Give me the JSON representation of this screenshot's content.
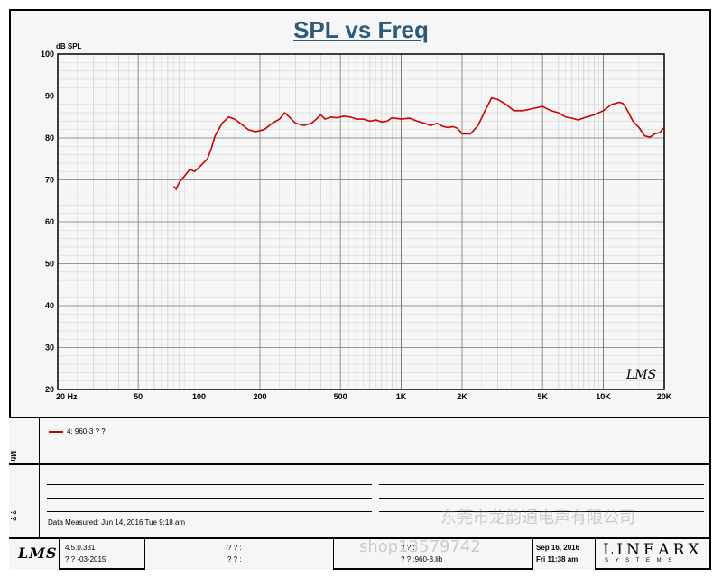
{
  "chart_data": {
    "type": "line",
    "title": "SPL vs Freq",
    "ylabel": "dB SPL",
    "xscale": "log",
    "xlim": [
      20,
      20000
    ],
    "ylim": [
      20,
      100
    ],
    "yticks": [
      100,
      90,
      80,
      70,
      60,
      50,
      40,
      30,
      20
    ],
    "xticks": [
      {
        "v": 20,
        "label": "20  Hz"
      },
      {
        "v": 50,
        "label": "50"
      },
      {
        "v": 100,
        "label": "100"
      },
      {
        "v": 200,
        "label": "200"
      },
      {
        "v": 500,
        "label": "500"
      },
      {
        "v": 1000,
        "label": "1K"
      },
      {
        "v": 2000,
        "label": "2K"
      },
      {
        "v": 5000,
        "label": "5K"
      },
      {
        "v": 10000,
        "label": "10K"
      },
      {
        "v": 20000,
        "label": "20K"
      }
    ],
    "grid": true,
    "line_color": "#cc0000",
    "series": [
      {
        "name": "4: 960-3 ? ?",
        "points": [
          [
            75,
            68.5
          ],
          [
            77,
            67.8
          ],
          [
            80,
            69.5
          ],
          [
            85,
            71
          ],
          [
            90,
            72.5
          ],
          [
            95,
            72
          ],
          [
            100,
            73
          ],
          [
            110,
            75
          ],
          [
            115,
            77.5
          ],
          [
            120,
            80.5
          ],
          [
            130,
            83.5
          ],
          [
            140,
            85
          ],
          [
            150,
            84.5
          ],
          [
            160,
            83.5
          ],
          [
            175,
            82
          ],
          [
            190,
            81.5
          ],
          [
            210,
            82
          ],
          [
            230,
            83.5
          ],
          [
            250,
            84.5
          ],
          [
            265,
            86
          ],
          [
            280,
            85
          ],
          [
            300,
            83.5
          ],
          [
            330,
            83
          ],
          [
            360,
            83.5
          ],
          [
            380,
            84.5
          ],
          [
            400,
            85.5
          ],
          [
            420,
            84.5
          ],
          [
            450,
            85
          ],
          [
            480,
            84.8
          ],
          [
            520,
            85.2
          ],
          [
            560,
            85
          ],
          [
            600,
            84.5
          ],
          [
            650,
            84.5
          ],
          [
            700,
            84
          ],
          [
            750,
            84.3
          ],
          [
            800,
            83.8
          ],
          [
            850,
            84
          ],
          [
            900,
            84.8
          ],
          [
            1000,
            84.5
          ],
          [
            1100,
            84.7
          ],
          [
            1200,
            84
          ],
          [
            1300,
            83.5
          ],
          [
            1400,
            83
          ],
          [
            1500,
            83.5
          ],
          [
            1600,
            82.8
          ],
          [
            1700,
            82.5
          ],
          [
            1800,
            82.7
          ],
          [
            1900,
            82.3
          ],
          [
            2000,
            81
          ],
          [
            2200,
            81
          ],
          [
            2400,
            83
          ],
          [
            2600,
            86.5
          ],
          [
            2800,
            89.5
          ],
          [
            3000,
            89.2
          ],
          [
            3300,
            88
          ],
          [
            3600,
            86.5
          ],
          [
            4000,
            86.5
          ],
          [
            4500,
            87
          ],
          [
            5000,
            87.5
          ],
          [
            5500,
            86.5
          ],
          [
            6000,
            86
          ],
          [
            6500,
            85
          ],
          [
            7000,
            84.7
          ],
          [
            7500,
            84.3
          ],
          [
            8000,
            84.8
          ],
          [
            9000,
            85.5
          ],
          [
            10000,
            86.5
          ],
          [
            11000,
            88
          ],
          [
            12000,
            88.5
          ],
          [
            12500,
            88.2
          ],
          [
            13000,
            87
          ],
          [
            14000,
            84
          ],
          [
            15000,
            82.5
          ],
          [
            16000,
            80.5
          ],
          [
            17000,
            80.2
          ],
          [
            18000,
            81
          ],
          [
            19000,
            81.3
          ],
          [
            20000,
            82.5
          ]
        ]
      }
    ],
    "watermark_logo": "LMS"
  },
  "legend": {
    "entry": "4: 960-3 ? ?"
  },
  "side_labels": {
    "upper": "Mfr",
    "lower": "? ?"
  },
  "notes": {
    "date_measured": "Data Measured: Jun 14, 2016 Tue  9:18 am"
  },
  "footer": {
    "logo": "LMS",
    "version": "4.5.0.331",
    "version_date": "? ? -03-2015",
    "field1": "? ? :",
    "field2": "? ? :",
    "file1": "? ? :",
    "file2": "? ? :960-3.lib",
    "date": "Sep 16, 2016",
    "time": "Fri 11:38 am",
    "brand": "LINEARX",
    "brand_sub": "S Y S T E M S"
  },
  "watermarks": {
    "text1": "东莞市龙韵通电声有限公司",
    "text2": "shop13579742"
  }
}
